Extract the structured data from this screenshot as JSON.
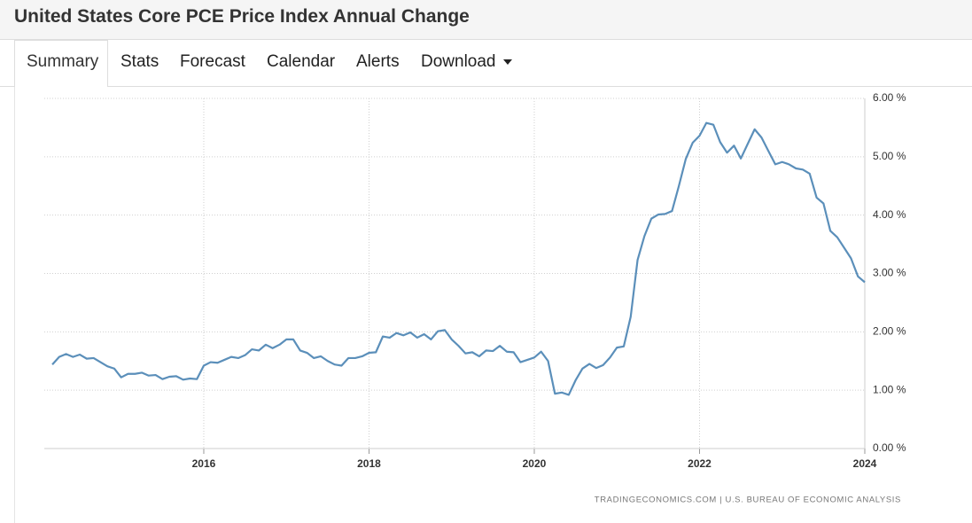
{
  "header": {
    "title": "United States Core PCE Price Index Annual Change",
    "tabs": [
      "Summary",
      "Stats",
      "Forecast",
      "Calendar",
      "Alerts",
      "Download"
    ]
  },
  "chart_data": {
    "type": "line",
    "color": "#5b8fba",
    "grid": true,
    "source": "TRADINGECONOMICS.COM | U.S. BUREAU OF ECONOMIC ANALYSIS",
    "x": [
      2014.167,
      2014.25,
      2014.333,
      2014.417,
      2014.5,
      2014.583,
      2014.667,
      2014.75,
      2014.833,
      2014.917,
      2015,
      2015.083,
      2015.167,
      2015.25,
      2015.333,
      2015.417,
      2015.5,
      2015.583,
      2015.667,
      2015.75,
      2015.833,
      2015.917,
      2016,
      2016.083,
      2016.167,
      2016.25,
      2016.333,
      2016.417,
      2016.5,
      2016.583,
      2016.667,
      2016.75,
      2016.833,
      2016.917,
      2017,
      2017.083,
      2017.167,
      2017.25,
      2017.333,
      2017.417,
      2017.5,
      2017.583,
      2017.667,
      2017.75,
      2017.833,
      2017.917,
      2018,
      2018.083,
      2018.167,
      2018.25,
      2018.333,
      2018.417,
      2018.5,
      2018.583,
      2018.667,
      2018.75,
      2018.833,
      2018.917,
      2019,
      2019.083,
      2019.167,
      2019.25,
      2019.333,
      2019.417,
      2019.5,
      2019.583,
      2019.667,
      2019.75,
      2019.833,
      2019.917,
      2020,
      2020.083,
      2020.167,
      2020.25,
      2020.333,
      2020.417,
      2020.5,
      2020.583,
      2020.667,
      2020.75,
      2020.833,
      2020.917,
      2021,
      2021.083,
      2021.167,
      2021.25,
      2021.333,
      2021.417,
      2021.5,
      2021.583,
      2021.667,
      2021.75,
      2021.833,
      2021.917,
      2022,
      2022.083,
      2022.167,
      2022.25,
      2022.333,
      2022.417,
      2022.5,
      2022.583,
      2022.667,
      2022.75,
      2022.833,
      2022.917,
      2023,
      2023.083,
      2023.167,
      2023.25,
      2023.333,
      2023.417,
      2023.5,
      2023.583,
      2023.667,
      2023.75,
      2023.833,
      2023.917,
      2024
    ],
    "values": [
      1.44,
      1.57,
      1.62,
      1.57,
      1.61,
      1.54,
      1.55,
      1.48,
      1.41,
      1.37,
      1.22,
      1.28,
      1.28,
      1.3,
      1.25,
      1.26,
      1.19,
      1.23,
      1.24,
      1.18,
      1.2,
      1.19,
      1.42,
      1.48,
      1.47,
      1.52,
      1.57,
      1.55,
      1.6,
      1.7,
      1.68,
      1.78,
      1.72,
      1.78,
      1.87,
      1.87,
      1.68,
      1.64,
      1.55,
      1.58,
      1.5,
      1.44,
      1.42,
      1.55,
      1.55,
      1.58,
      1.64,
      1.65,
      1.92,
      1.9,
      1.98,
      1.94,
      1.99,
      1.9,
      1.96,
      1.87,
      2.01,
      2.03,
      1.87,
      1.76,
      1.63,
      1.65,
      1.58,
      1.68,
      1.67,
      1.76,
      1.66,
      1.65,
      1.48,
      1.52,
      1.56,
      1.66,
      1.5,
      0.94,
      0.96,
      0.92,
      1.17,
      1.37,
      1.45,
      1.38,
      1.43,
      1.56,
      1.73,
      1.75,
      2.26,
      3.23,
      3.64,
      3.94,
      4.01,
      4.02,
      4.07,
      4.5,
      4.96,
      5.24,
      5.36,
      5.58,
      5.55,
      5.25,
      5.07,
      5.19,
      4.97,
      5.22,
      5.47,
      5.33,
      5.1,
      4.87,
      4.91,
      4.87,
      4.8,
      4.78,
      4.71,
      4.3,
      4.2,
      3.73,
      3.62,
      3.44,
      3.26,
      2.95,
      2.85
    ],
    "xlim": [
      2014.07,
      2024
    ],
    "xticks": [
      2016,
      2018,
      2020,
      2022,
      2024
    ],
    "ylim": [
      0,
      6
    ],
    "yticks": [
      {
        "value": 0,
        "label": "0.00 %"
      },
      {
        "value": 1,
        "label": "1.00 %"
      },
      {
        "value": 2,
        "label": "2.00 %"
      },
      {
        "value": 3,
        "label": "3.00 %"
      },
      {
        "value": 4,
        "label": "4.00 %"
      },
      {
        "value": 5,
        "label": "5.00 %"
      },
      {
        "value": 6,
        "label": "6.00 %"
      }
    ]
  }
}
